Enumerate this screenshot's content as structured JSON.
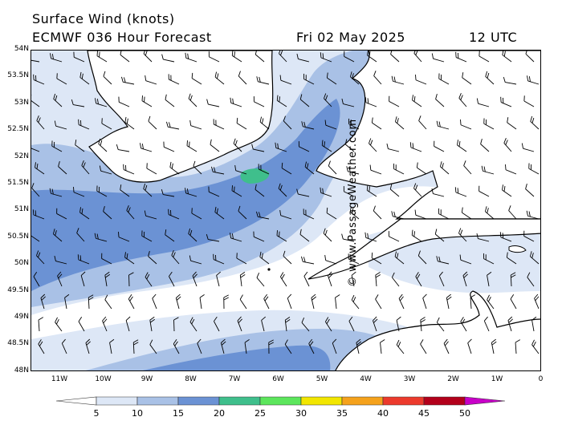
{
  "header": {
    "title": "Surface Wind (knots)",
    "model": "ECMWF 036 Hour Forecast",
    "date": "Fri 02 May 2025",
    "time": "12 UTC"
  },
  "credit": "© www.PassageWeather.com",
  "axes": {
    "lat_labels": [
      "54N",
      "53.5N",
      "53N",
      "52.5N",
      "52N",
      "51.5N",
      "51N",
      "50.5N",
      "50N",
      "49.5N",
      "49N",
      "48.5N",
      "48N"
    ],
    "lon_labels": [
      "11W",
      "10W",
      "9W",
      "8W",
      "7W",
      "6W",
      "5W",
      "4W",
      "3W",
      "2W",
      "1W",
      "0"
    ]
  },
  "legend": {
    "labels": [
      "5",
      "10",
      "15",
      "20",
      "25",
      "30",
      "35",
      "40",
      "45",
      "50"
    ],
    "colors": [
      "#ffffff",
      "#dde7f6",
      "#a9c1e6",
      "#6b92d4",
      "#3fbf8c",
      "#5ce65c",
      "#f2e600",
      "#f5a21c",
      "#ec3a2c",
      "#b3001b",
      "#c800c8"
    ]
  },
  "map": {
    "wind_speed_colors": {
      "calm": "#ffffff",
      "5-10": "#dde7f6",
      "10-15": "#a9c1e6",
      "15-20": "#6b92d4",
      "20-25": "#3fbf8c"
    },
    "coastline_color": "#000000"
  }
}
